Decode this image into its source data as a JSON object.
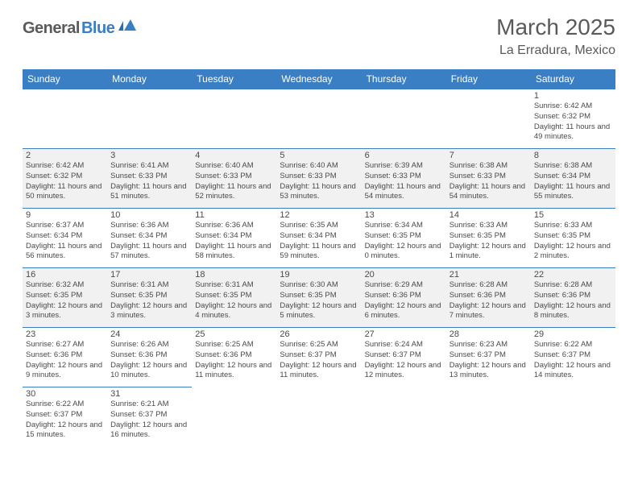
{
  "logo": {
    "part1": "General",
    "part2": "Blue"
  },
  "title": "March 2025",
  "location": "La Erradura, Mexico",
  "weekdays": [
    "Sunday",
    "Monday",
    "Tuesday",
    "Wednesday",
    "Thursday",
    "Friday",
    "Saturday"
  ],
  "colors": {
    "header_bg": "#3a7fc4",
    "header_text": "#ffffff",
    "alt_row_bg": "#f1f1f1",
    "text": "#4a4a4a",
    "logo_gray": "#5a5a5a",
    "logo_blue": "#3a7fc4"
  },
  "layout": {
    "columns": 7,
    "rows": 6,
    "first_day_column": 6,
    "days_in_month": 31,
    "alt_rows": [
      1,
      3
    ]
  },
  "days": [
    {
      "n": 1,
      "sunrise": "6:42 AM",
      "sunset": "6:32 PM",
      "daylight": "11 hours and 49 minutes."
    },
    {
      "n": 2,
      "sunrise": "6:42 AM",
      "sunset": "6:32 PM",
      "daylight": "11 hours and 50 minutes."
    },
    {
      "n": 3,
      "sunrise": "6:41 AM",
      "sunset": "6:33 PM",
      "daylight": "11 hours and 51 minutes."
    },
    {
      "n": 4,
      "sunrise": "6:40 AM",
      "sunset": "6:33 PM",
      "daylight": "11 hours and 52 minutes."
    },
    {
      "n": 5,
      "sunrise": "6:40 AM",
      "sunset": "6:33 PM",
      "daylight": "11 hours and 53 minutes."
    },
    {
      "n": 6,
      "sunrise": "6:39 AM",
      "sunset": "6:33 PM",
      "daylight": "11 hours and 54 minutes."
    },
    {
      "n": 7,
      "sunrise": "6:38 AM",
      "sunset": "6:33 PM",
      "daylight": "11 hours and 54 minutes."
    },
    {
      "n": 8,
      "sunrise": "6:38 AM",
      "sunset": "6:34 PM",
      "daylight": "11 hours and 55 minutes."
    },
    {
      "n": 9,
      "sunrise": "6:37 AM",
      "sunset": "6:34 PM",
      "daylight": "11 hours and 56 minutes."
    },
    {
      "n": 10,
      "sunrise": "6:36 AM",
      "sunset": "6:34 PM",
      "daylight": "11 hours and 57 minutes."
    },
    {
      "n": 11,
      "sunrise": "6:36 AM",
      "sunset": "6:34 PM",
      "daylight": "11 hours and 58 minutes."
    },
    {
      "n": 12,
      "sunrise": "6:35 AM",
      "sunset": "6:34 PM",
      "daylight": "11 hours and 59 minutes."
    },
    {
      "n": 13,
      "sunrise": "6:34 AM",
      "sunset": "6:35 PM",
      "daylight": "12 hours and 0 minutes."
    },
    {
      "n": 14,
      "sunrise": "6:33 AM",
      "sunset": "6:35 PM",
      "daylight": "12 hours and 1 minute."
    },
    {
      "n": 15,
      "sunrise": "6:33 AM",
      "sunset": "6:35 PM",
      "daylight": "12 hours and 2 minutes."
    },
    {
      "n": 16,
      "sunrise": "6:32 AM",
      "sunset": "6:35 PM",
      "daylight": "12 hours and 3 minutes."
    },
    {
      "n": 17,
      "sunrise": "6:31 AM",
      "sunset": "6:35 PM",
      "daylight": "12 hours and 3 minutes."
    },
    {
      "n": 18,
      "sunrise": "6:31 AM",
      "sunset": "6:35 PM",
      "daylight": "12 hours and 4 minutes."
    },
    {
      "n": 19,
      "sunrise": "6:30 AM",
      "sunset": "6:35 PM",
      "daylight": "12 hours and 5 minutes."
    },
    {
      "n": 20,
      "sunrise": "6:29 AM",
      "sunset": "6:36 PM",
      "daylight": "12 hours and 6 minutes."
    },
    {
      "n": 21,
      "sunrise": "6:28 AM",
      "sunset": "6:36 PM",
      "daylight": "12 hours and 7 minutes."
    },
    {
      "n": 22,
      "sunrise": "6:28 AM",
      "sunset": "6:36 PM",
      "daylight": "12 hours and 8 minutes."
    },
    {
      "n": 23,
      "sunrise": "6:27 AM",
      "sunset": "6:36 PM",
      "daylight": "12 hours and 9 minutes."
    },
    {
      "n": 24,
      "sunrise": "6:26 AM",
      "sunset": "6:36 PM",
      "daylight": "12 hours and 10 minutes."
    },
    {
      "n": 25,
      "sunrise": "6:25 AM",
      "sunset": "6:36 PM",
      "daylight": "12 hours and 11 minutes."
    },
    {
      "n": 26,
      "sunrise": "6:25 AM",
      "sunset": "6:37 PM",
      "daylight": "12 hours and 11 minutes."
    },
    {
      "n": 27,
      "sunrise": "6:24 AM",
      "sunset": "6:37 PM",
      "daylight": "12 hours and 12 minutes."
    },
    {
      "n": 28,
      "sunrise": "6:23 AM",
      "sunset": "6:37 PM",
      "daylight": "12 hours and 13 minutes."
    },
    {
      "n": 29,
      "sunrise": "6:22 AM",
      "sunset": "6:37 PM",
      "daylight": "12 hours and 14 minutes."
    },
    {
      "n": 30,
      "sunrise": "6:22 AM",
      "sunset": "6:37 PM",
      "daylight": "12 hours and 15 minutes."
    },
    {
      "n": 31,
      "sunrise": "6:21 AM",
      "sunset": "6:37 PM",
      "daylight": "12 hours and 16 minutes."
    }
  ],
  "labels": {
    "sunrise_prefix": "Sunrise: ",
    "sunset_prefix": "Sunset: ",
    "daylight_prefix": "Daylight: "
  }
}
